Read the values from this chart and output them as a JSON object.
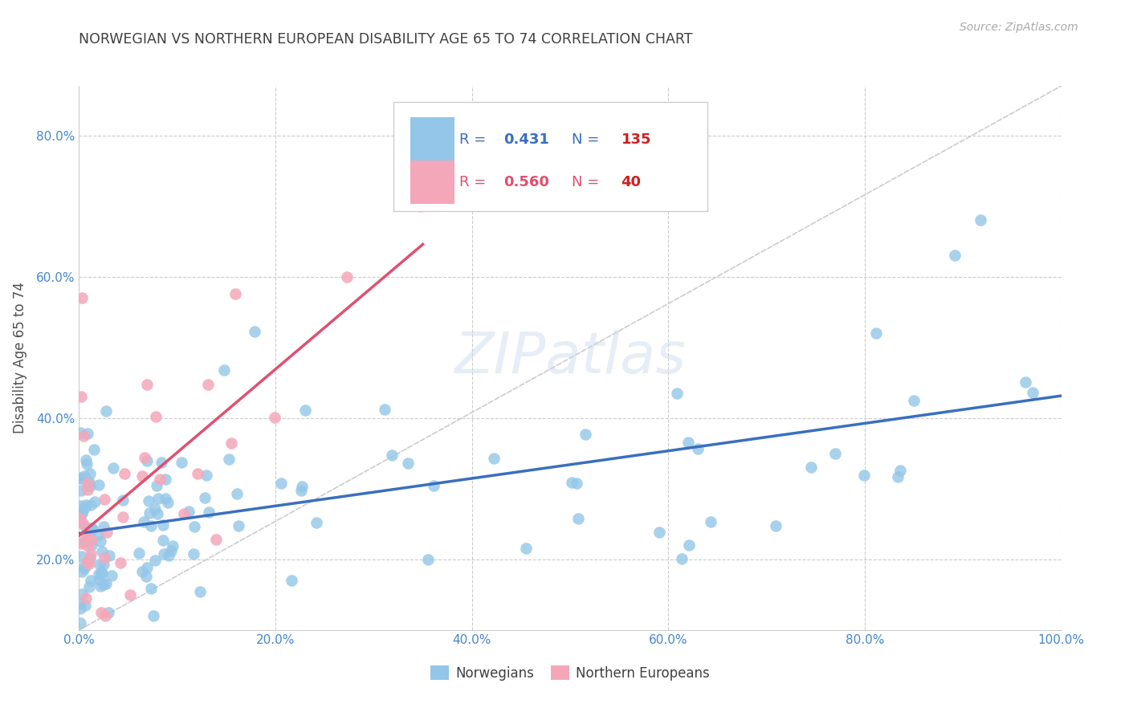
{
  "title": "NORWEGIAN VS NORTHERN EUROPEAN DISABILITY AGE 65 TO 74 CORRELATION CHART",
  "source": "Source: ZipAtlas.com",
  "ylabel": "Disability Age 65 to 74",
  "xlim": [
    0,
    1.0
  ],
  "ylim": [
    0.1,
    0.87
  ],
  "xticks": [
    0.0,
    0.2,
    0.4,
    0.6,
    0.8,
    1.0
  ],
  "xticklabels": [
    "0.0%",
    "20.0%",
    "40.0%",
    "60.0%",
    "80.0%",
    "100.0%"
  ],
  "yticks": [
    0.2,
    0.4,
    0.6,
    0.8
  ],
  "yticklabels": [
    "20.0%",
    "40.0%",
    "60.0%",
    "80.0%"
  ],
  "norwegian_color": "#93C6E8",
  "northern_european_color": "#F4A7B9",
  "norwegian_R": 0.431,
  "norwegian_N": 135,
  "northern_european_R": 0.56,
  "northern_european_N": 40,
  "norwegian_line_color": "#3A6FBF",
  "northern_european_line_color": "#E05070",
  "background_color": "#ffffff",
  "grid_color": "#cccccc",
  "title_color": "#404040",
  "axis_label_color": "#505050",
  "tick_label_color": "#4488CC",
  "ref_line_color": "#cccccc"
}
